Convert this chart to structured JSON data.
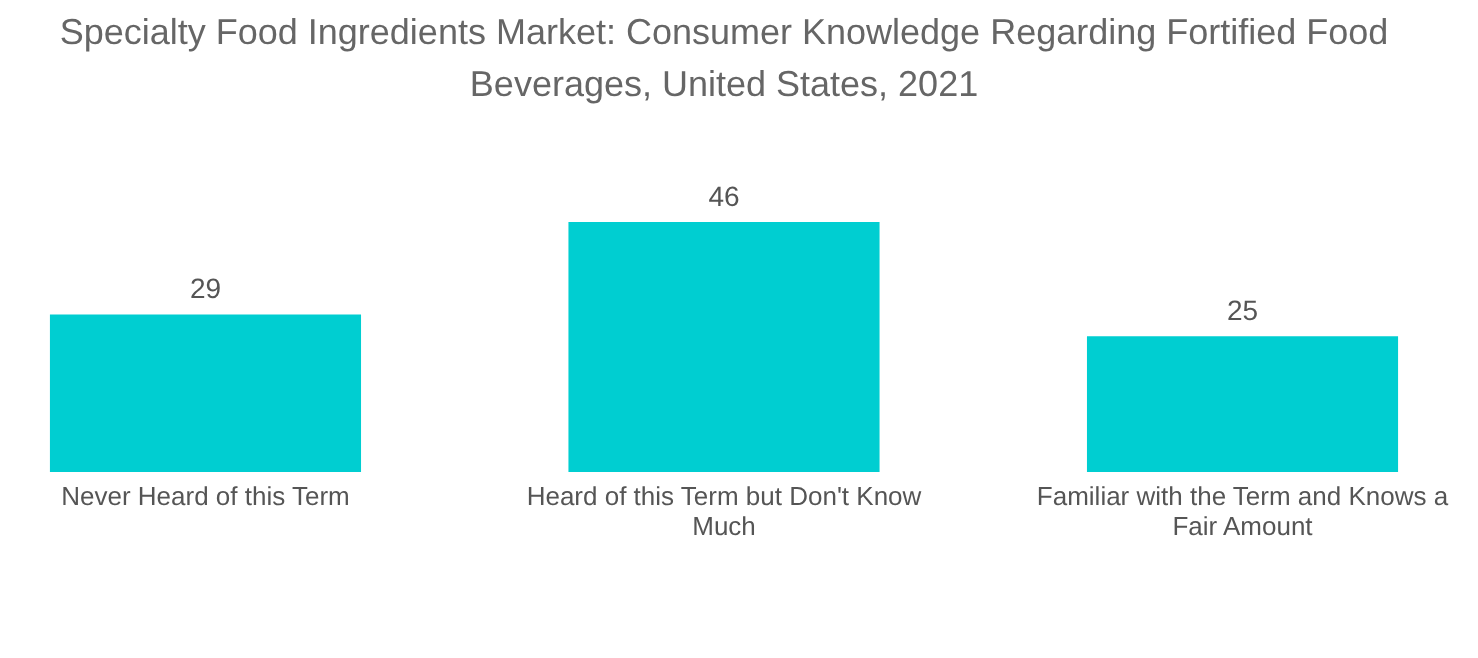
{
  "chart_data": {
    "type": "bar",
    "title": "Specialty Food Ingredients Market: Consumer Knowledge Regarding Fortified Food Beverages, United States, 2021",
    "categories": [
      "Never Heard of this Term",
      "Heard of this Term but Don't Know Much",
      "Familiar with the Term and Knows a Fair Amount"
    ],
    "values": [
      29,
      46,
      25
    ],
    "color": "#00ced1",
    "data_labels": true
  }
}
